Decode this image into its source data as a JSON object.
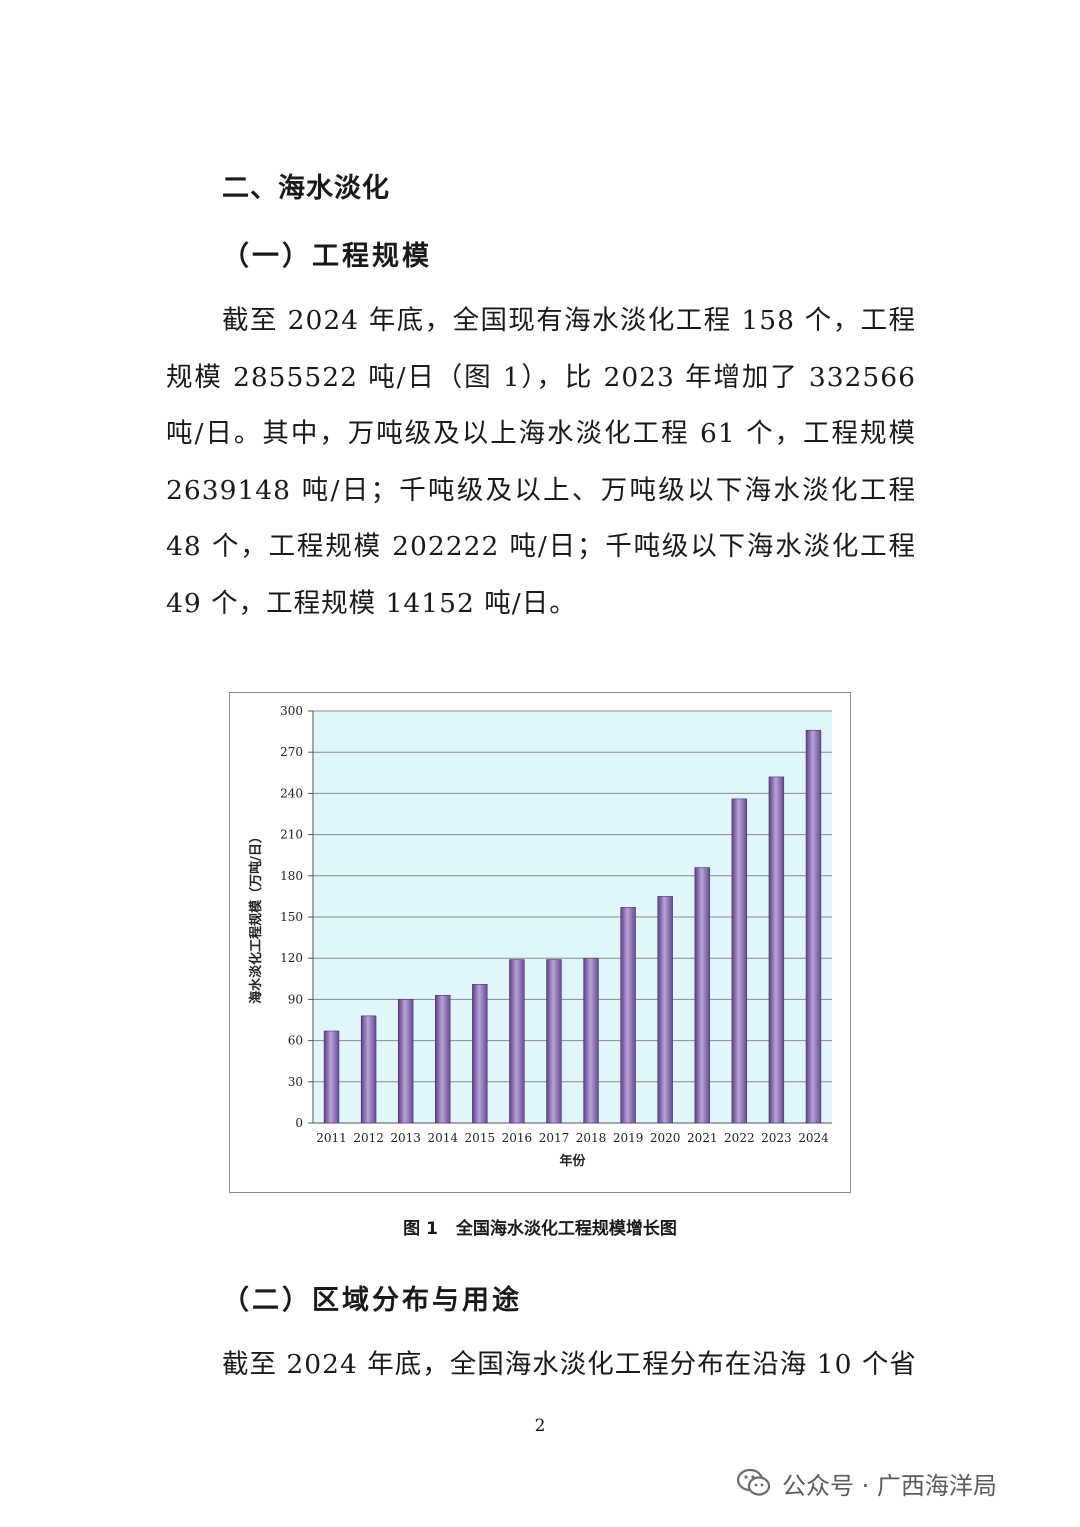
{
  "section": {
    "heading": "二、海水淡化",
    "sub1": "（一）工程规模",
    "para1": "截至 2024 年底，全国现有海水淡化工程 158 个，工程规模 2855522 吨/日（图 1），比 2023 年增加了 332566 吨/日。其中，万吨级及以上海水淡化工程 61 个，工程规模 2639148 吨/日；千吨级及以上、万吨级以下海水淡化工程 48 个，工程规模 202222 吨/日；千吨级以下海水淡化工程 49 个，工程规模 14152 吨/日。",
    "sub2": "（二）区域分布与用途",
    "para2": "截至 2024 年底，全国海水淡化工程分布在沿海 10 个省"
  },
  "figure": {
    "number": "图 1",
    "caption": "全国海水淡化工程规模增长图"
  },
  "chart_data": {
    "type": "bar",
    "categories": [
      "2011",
      "2012",
      "2013",
      "2014",
      "2015",
      "2016",
      "2017",
      "2018",
      "2019",
      "2020",
      "2021",
      "2022",
      "2023",
      "2024"
    ],
    "values": [
      67,
      78,
      90,
      93,
      101,
      119,
      119,
      120,
      157,
      165,
      186,
      236,
      252,
      286
    ],
    "ylim": [
      0,
      300
    ],
    "yticks": [
      0,
      30,
      60,
      90,
      120,
      150,
      180,
      210,
      240,
      270,
      300
    ],
    "xlabel": "年份",
    "ylabel": "海水淡化工程规模（万吨/日）",
    "grid": true,
    "colors": {
      "plot_bg": "#dff6fb",
      "bar": "#8e6bb4",
      "grid": "#8a8a8a"
    }
  },
  "page_number": "2",
  "watermark": {
    "text": "公众号 · 广西海洋局",
    "icon": "wechat-icon"
  }
}
